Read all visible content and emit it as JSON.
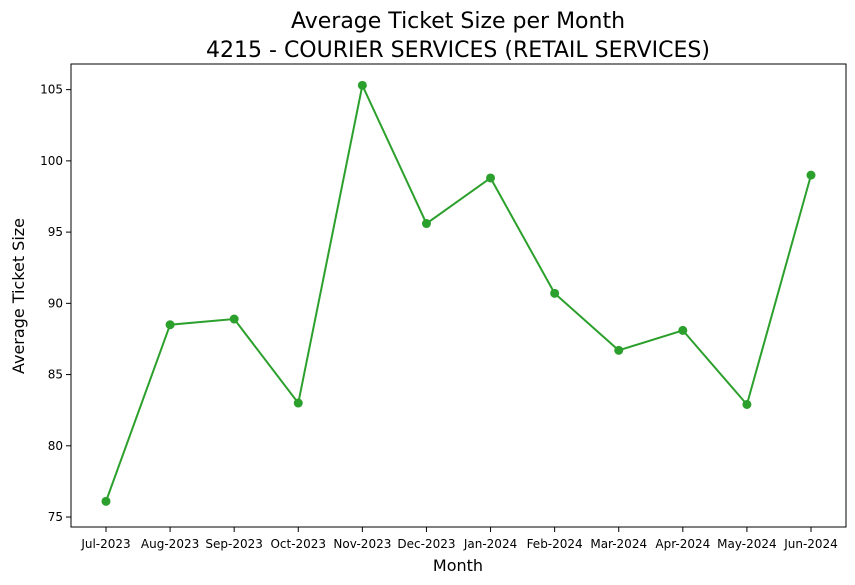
{
  "chart_data": {
    "type": "line",
    "title": "Average Ticket Size per Month",
    "subtitle": "4215 - COURIER SERVICES (RETAIL SERVICES)",
    "xlabel": "Month",
    "ylabel": "Average Ticket Size",
    "categories": [
      "Jul-2023",
      "Aug-2023",
      "Sep-2023",
      "Oct-2023",
      "Nov-2023",
      "Dec-2023",
      "Jan-2024",
      "Feb-2024",
      "Mar-2024",
      "Apr-2024",
      "May-2024",
      "Jun-2024"
    ],
    "series": [
      {
        "values": [
          76.1,
          88.5,
          88.9,
          83.0,
          105.3,
          95.6,
          98.8,
          90.7,
          86.7,
          88.1,
          82.9,
          99.0
        ],
        "color": "#2ca02c"
      }
    ],
    "yticks": [
      75,
      80,
      85,
      90,
      95,
      100,
      105
    ],
    "ylim": [
      74.3,
      106.8
    ],
    "grid": false,
    "legend": "none"
  }
}
